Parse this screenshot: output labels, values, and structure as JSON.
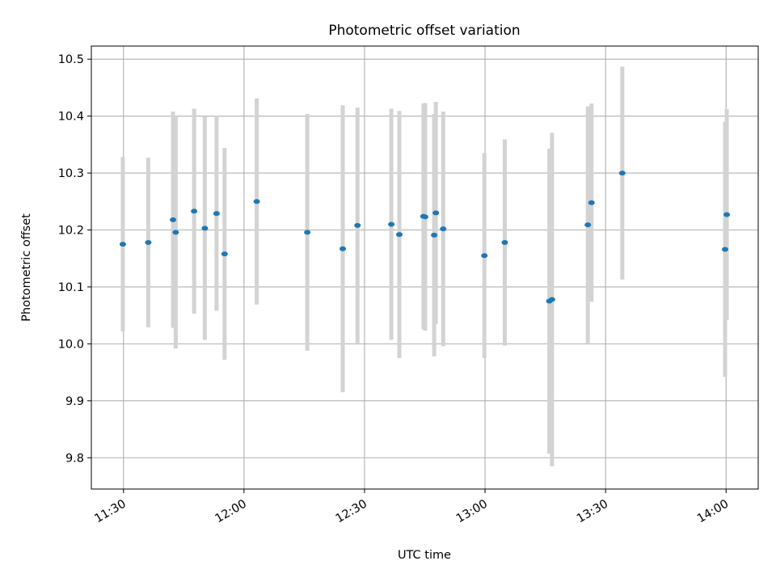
{
  "chart_data": {
    "type": "scatter",
    "title": "Photometric offset variation",
    "xlabel": "UTC time",
    "ylabel": "Photometric offset",
    "x_tick_labels": [
      "11:30",
      "12:00",
      "12:30",
      "13:00",
      "13:30",
      "14:00"
    ],
    "y_tick_labels": [
      "9.8",
      "9.9",
      "10.0",
      "10.1",
      "10.2",
      "10.3",
      "10.4",
      "10.5"
    ],
    "xlim": [
      "11:22",
      "14:08"
    ],
    "ylim": [
      9.745,
      10.523
    ],
    "grid": true,
    "errorbar_color": "#d3d3d3",
    "marker_color": "#1f77b4",
    "series": [
      {
        "points": [
          {
            "x": "11:29:50",
            "y": 10.175,
            "err": 0.153
          },
          {
            "x": "11:36:10",
            "y": 10.178,
            "err": 0.149
          },
          {
            "x": "11:42:20",
            "y": 10.218,
            "err": 0.19
          },
          {
            "x": "11:43:00",
            "y": 10.196,
            "err": 0.204
          },
          {
            "x": "11:47:35",
            "y": 10.233,
            "err": 0.18
          },
          {
            "x": "11:50:15",
            "y": 10.203,
            "err": 0.196
          },
          {
            "x": "11:53:10",
            "y": 10.229,
            "err": 0.171
          },
          {
            "x": "11:55:10",
            "y": 10.158,
            "err": 0.186
          },
          {
            "x": "12:03:10",
            "y": 10.25,
            "err": 0.181
          },
          {
            "x": "12:15:45",
            "y": 10.196,
            "err": 0.208
          },
          {
            "x": "12:24:35",
            "y": 10.167,
            "err": 0.252
          },
          {
            "x": "12:28:15",
            "y": 10.208,
            "err": 0.207
          },
          {
            "x": "12:36:40",
            "y": 10.21,
            "err": 0.203
          },
          {
            "x": "12:38:40",
            "y": 10.192,
            "err": 0.217
          },
          {
            "x": "12:44:40",
            "y": 10.224,
            "err": 0.198
          },
          {
            "x": "12:45:05",
            "y": 10.223,
            "err": 0.2
          },
          {
            "x": "12:47:20",
            "y": 10.191,
            "err": 0.213
          },
          {
            "x": "12:47:45",
            "y": 10.23,
            "err": 0.195
          },
          {
            "x": "12:49:35",
            "y": 10.202,
            "err": 0.206
          },
          {
            "x": "12:59:50",
            "y": 10.155,
            "err": 0.18
          },
          {
            "x": "13:04:55",
            "y": 10.178,
            "err": 0.181
          },
          {
            "x": "13:16:00",
            "y": 10.075,
            "err": 0.268
          },
          {
            "x": "13:16:40",
            "y": 10.078,
            "err": 0.293
          },
          {
            "x": "13:25:35",
            "y": 10.209,
            "err": 0.208
          },
          {
            "x": "13:26:30",
            "y": 10.248,
            "err": 0.174
          },
          {
            "x": "13:34:10",
            "y": 10.3,
            "err": 0.187
          },
          {
            "x": "13:59:45",
            "y": 10.166,
            "err": 0.224
          },
          {
            "x": "14:00:10",
            "y": 10.227,
            "err": 0.185
          }
        ]
      }
    ]
  }
}
